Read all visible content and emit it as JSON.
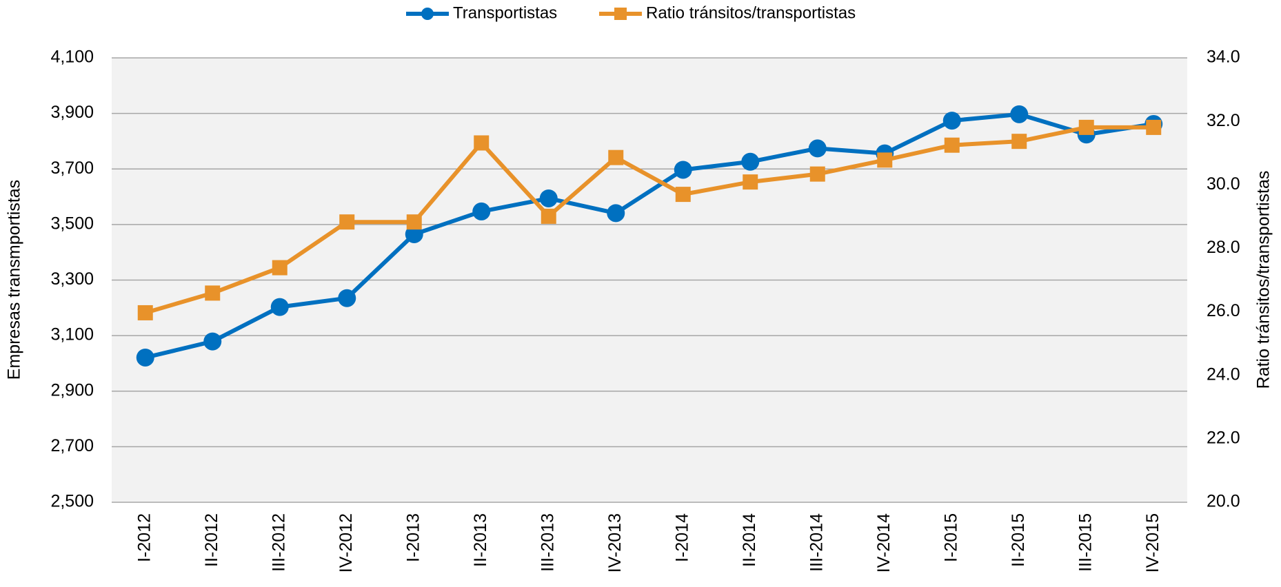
{
  "chart_data": {
    "type": "line",
    "legend": "top",
    "grid": true,
    "y_label": "Empresas  transmportistas",
    "y2_label": "Ratio  tránsitos/transportistas",
    "categories": [
      "I-2012",
      "II-2012",
      "III-2012",
      "IV-2012",
      "I-2013",
      "II-2013",
      "III-2013",
      "IV-2013",
      "I-2014",
      "II-2014",
      "III-2014",
      "IV-2014",
      "I-2015",
      "II-2015",
      "III-2015",
      "IV-2015"
    ],
    "ylim": [
      2500,
      4100
    ],
    "yticks": [
      {
        "value": 2500,
        "label": "2,500"
      },
      {
        "value": 2700,
        "label": "2,700"
      },
      {
        "value": 2900,
        "label": "2,900"
      },
      {
        "value": 3100,
        "label": "3,100"
      },
      {
        "value": 3300,
        "label": "3,300"
      },
      {
        "value": 3500,
        "label": "3,500"
      },
      {
        "value": 3700,
        "label": "3,700"
      },
      {
        "value": 3900,
        "label": "3,900"
      },
      {
        "value": 4100,
        "label": "4,100"
      }
    ],
    "y2lim": [
      20,
      34
    ],
    "y2ticks": [
      {
        "value": 20,
        "label": "20.0"
      },
      {
        "value": 22,
        "label": "22.0"
      },
      {
        "value": 24,
        "label": "24.0"
      },
      {
        "value": 26,
        "label": "26.0"
      },
      {
        "value": 28,
        "label": "28.0"
      },
      {
        "value": 30,
        "label": "30.0"
      },
      {
        "value": 32,
        "label": "32.0"
      },
      {
        "value": 34,
        "label": "34.0"
      }
    ],
    "series": [
      {
        "name": "Transportistas",
        "color": "#0070c0",
        "marker": "circle",
        "values": [
          3021,
          3079,
          3203,
          3235,
          3465,
          3547,
          3594,
          3541,
          3697,
          3726,
          3774,
          3756,
          3874,
          3897,
          3824,
          3862
        ]
      },
      {
        "name": "Ratio tránsitos/transportistas",
        "color": "#e8922a",
        "marker": "square",
        "axis": "y2",
        "values": [
          25.97,
          26.59,
          27.39,
          28.83,
          28.83,
          31.32,
          29.01,
          30.86,
          29.7,
          30.09,
          30.34,
          30.78,
          31.25,
          31.37,
          31.81,
          31.81
        ]
      }
    ]
  }
}
